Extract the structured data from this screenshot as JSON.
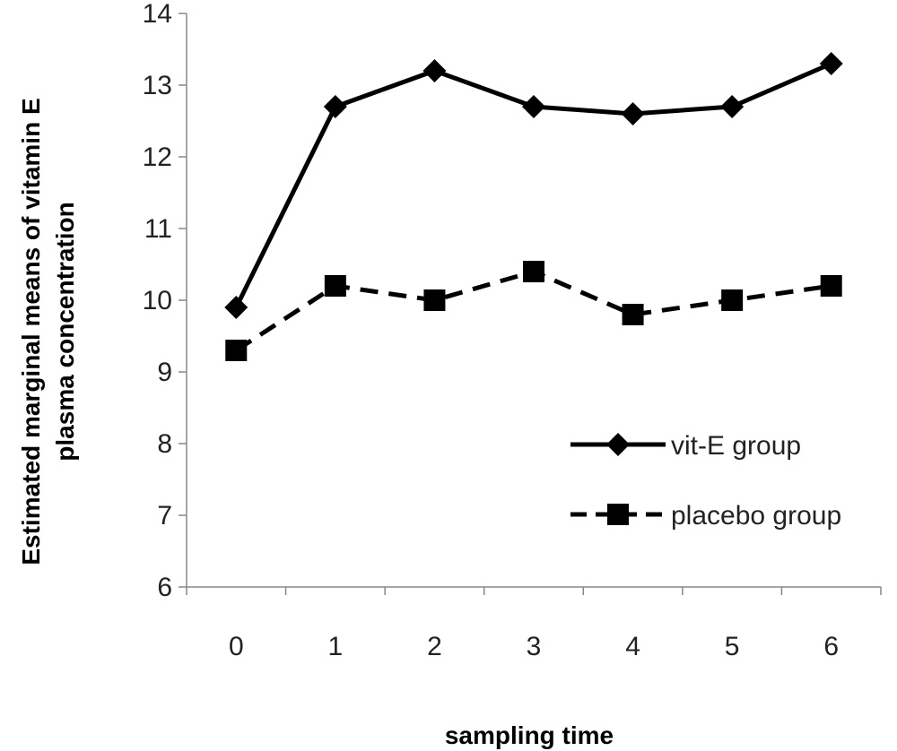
{
  "chart_data": {
    "type": "line",
    "title": "",
    "xlabel": "sampling time",
    "ylabel_lines": [
      "Estimated marginal means of vitamin E",
      "plasma concentration"
    ],
    "categories": [
      "0",
      "1",
      "2",
      "3",
      "4",
      "5",
      "6"
    ],
    "ylim": [
      6,
      14
    ],
    "yticks": [
      "6",
      "7",
      "8",
      "9",
      "10",
      "11",
      "12",
      "13",
      "14"
    ],
    "grid": false,
    "legend_position": "right-center",
    "series": [
      {
        "name": "vit-E group",
        "values": [
          9.9,
          12.7,
          13.2,
          12.7,
          12.6,
          12.7,
          13.3
        ],
        "marker": "diamond",
        "line_style": "solid",
        "color": "#000000"
      },
      {
        "name": "placebo group",
        "values": [
          9.3,
          10.2,
          10.0,
          10.4,
          9.8,
          10.0,
          10.2
        ],
        "marker": "square",
        "line_style": "dashed",
        "color": "#000000"
      }
    ]
  }
}
